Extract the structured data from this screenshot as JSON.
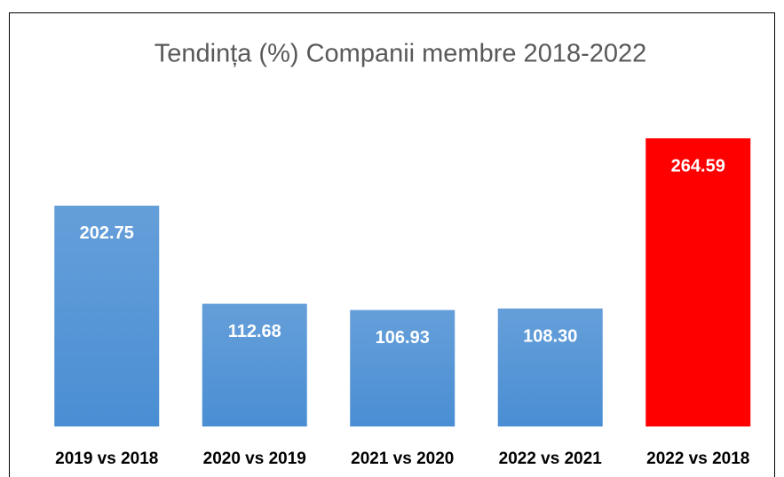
{
  "chart_data": {
    "type": "bar",
    "title": "Tendința (%) Companii membre 2018-2022",
    "categories": [
      "2019 vs 2018",
      "2020 vs 2019",
      "2021 vs 2020",
      "2022 vs 2021",
      "2022 vs 2018"
    ],
    "values": [
      202.75,
      112.68,
      106.93,
      108.3,
      264.59
    ],
    "value_labels": [
      "202.75",
      "112.68",
      "106.93",
      "108.30",
      "264.59"
    ],
    "colors": [
      "#4a8ed3",
      "#4a8ed3",
      "#4a8ed3",
      "#4a8ed3",
      "#ff0000"
    ]
  }
}
